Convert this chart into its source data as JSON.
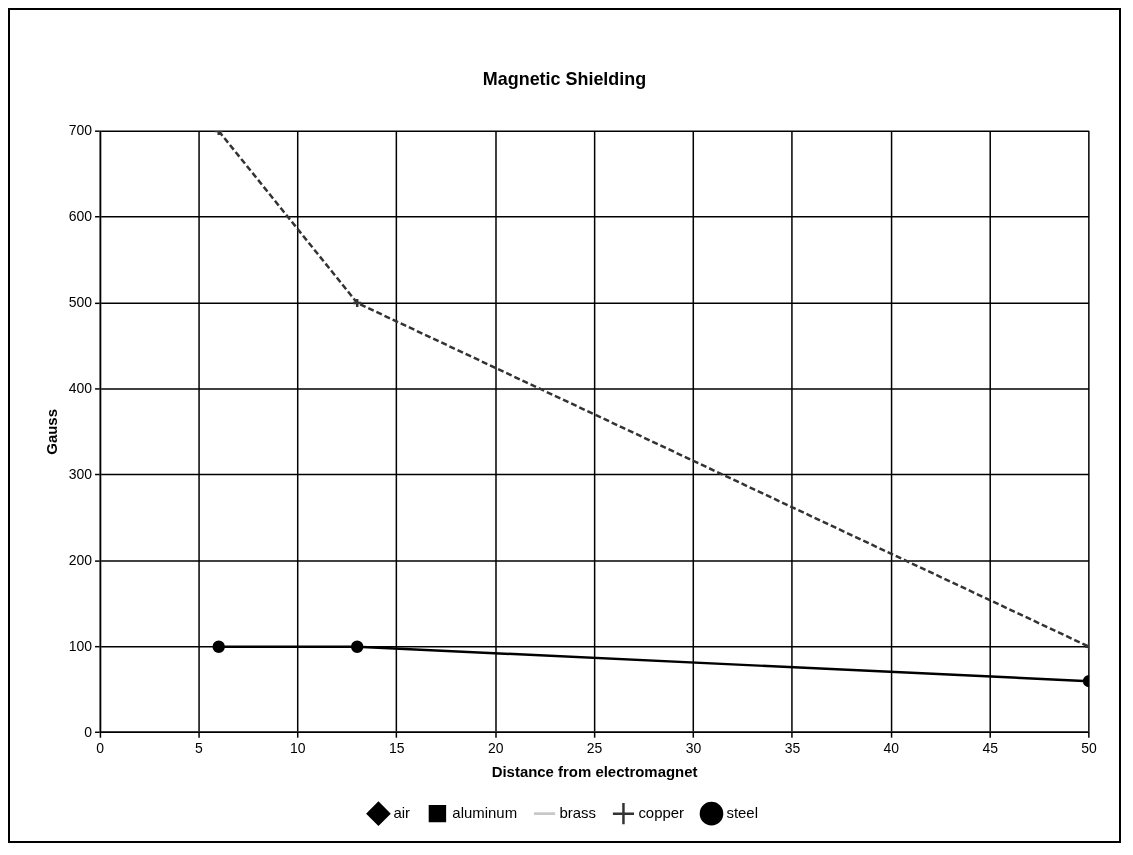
{
  "chart_data": {
    "type": "line",
    "title": "Magnetic Shielding",
    "xlabel": "Distance from electromagnet",
    "ylabel": "Gauss",
    "x": [
      6,
      13,
      50
    ],
    "series": [
      {
        "name": "air",
        "color": "#000000",
        "values": [
          null,
          null,
          null
        ],
        "marker": "diamond"
      },
      {
        "name": "aluminum",
        "color": "#000000",
        "values": [
          null,
          null,
          null
        ],
        "marker": "square"
      },
      {
        "name": "brass",
        "color": "#c8c8c8",
        "values": [
          null,
          null,
          null
        ],
        "marker": "none"
      },
      {
        "name": "copper",
        "color": "#333333",
        "values": [
          700,
          500,
          100
        ],
        "marker": "cross",
        "line_style": "dashed"
      },
      {
        "name": "steel",
        "color": "#000000",
        "values": [
          100,
          100,
          60
        ],
        "marker": "circle"
      }
    ],
    "xlim": [
      0,
      50
    ],
    "xticks": [
      0,
      5,
      10,
      15,
      20,
      25,
      30,
      35,
      40,
      45,
      50
    ],
    "ylim": [
      0,
      700
    ],
    "yticks": [
      0,
      100,
      200,
      300,
      400,
      500,
      600,
      700
    ],
    "grid": true,
    "legend": "bottom"
  }
}
